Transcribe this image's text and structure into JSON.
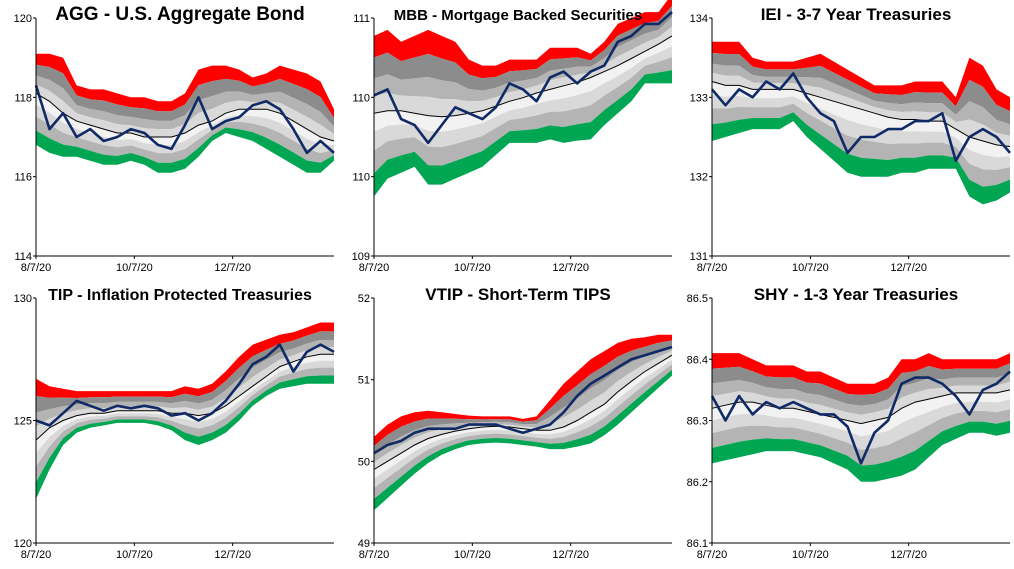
{
  "colors": {
    "red": "#ff0000",
    "gray_dark": "#8c8c8c",
    "gray_mid": "#b4b4b4",
    "gray_light": "#d9d9d9",
    "white_band": "#f2f2f2",
    "green_light": "#00b050",
    "green": "#00a651",
    "price_line": "#0f2a66",
    "mean_line": "#000000"
  },
  "chart_data": [
    {
      "type": "line",
      "ticker": "AGG",
      "title": "AGG - U.S. Aggregate Bond",
      "ylim": [
        114,
        120
      ],
      "yticks": [
        "114",
        "116",
        "118",
        "120"
      ],
      "xticks": [
        "8/7/20",
        "10/7/20",
        "12/7/20"
      ],
      "grid": false,
      "series": [
        {
          "name": "Price",
          "values": [
            118.3,
            117.2,
            117.6,
            117.0,
            117.2,
            116.9,
            117.0,
            117.2,
            117.1,
            116.8,
            116.7,
            117.3,
            118.0,
            117.2,
            117.4,
            117.5,
            117.8,
            117.9,
            117.7,
            117.2,
            116.6,
            116.9,
            116.6
          ]
        },
        {
          "name": "Mean",
          "values": [
            118.1,
            117.9,
            117.6,
            117.4,
            117.3,
            117.2,
            117.1,
            117.1,
            117.0,
            117.0,
            117.0,
            117.1,
            117.3,
            117.4,
            117.6,
            117.7,
            117.7,
            117.7,
            117.6,
            117.4,
            117.2,
            117.0,
            116.9
          ]
        },
        {
          "name": "Upper band",
          "values": [
            119.1,
            119.1,
            119.0,
            118.3,
            118.2,
            118.2,
            118.1,
            118.0,
            118.0,
            117.9,
            117.9,
            118.1,
            118.7,
            118.8,
            118.8,
            118.7,
            118.5,
            118.6,
            118.8,
            118.7,
            118.6,
            118.4,
            117.7
          ]
        },
        {
          "name": "Lower band",
          "values": [
            116.8,
            116.6,
            116.5,
            116.5,
            116.4,
            116.3,
            116.3,
            116.4,
            116.3,
            116.1,
            116.1,
            116.2,
            116.5,
            116.9,
            117.1,
            117.0,
            116.9,
            116.7,
            116.5,
            116.3,
            116.1,
            116.1,
            116.4
          ]
        }
      ]
    },
    {
      "type": "line",
      "ticker": "MBB",
      "title": "MBB - Mortgage Backed Securities",
      "ylim": [
        109,
        111
      ],
      "yticks": [
        "109",
        "110",
        "110",
        "111"
      ],
      "xticks": [
        "8/7/20",
        "10/7/20",
        "12/7/20"
      ],
      "grid": false,
      "series": [
        {
          "name": "Price",
          "values": [
            110.35,
            110.4,
            110.15,
            110.1,
            109.95,
            110.1,
            110.25,
            110.2,
            110.15,
            110.25,
            110.45,
            110.4,
            110.3,
            110.5,
            110.55,
            110.45,
            110.55,
            110.6,
            110.8,
            110.85,
            110.95,
            110.95,
            111.05
          ]
        },
        {
          "name": "Mean",
          "values": [
            110.2,
            110.22,
            110.22,
            110.2,
            110.18,
            110.17,
            110.18,
            110.2,
            110.22,
            110.26,
            110.3,
            110.33,
            110.37,
            110.4,
            110.43,
            110.46,
            110.5,
            110.55,
            110.6,
            110.66,
            110.72,
            110.78,
            110.85
          ]
        },
        {
          "name": "Upper band",
          "values": [
            110.85,
            110.9,
            110.8,
            110.85,
            110.9,
            110.85,
            110.8,
            110.65,
            110.6,
            110.6,
            110.65,
            110.65,
            110.65,
            110.75,
            110.75,
            110.75,
            110.7,
            110.8,
            110.95,
            111.0,
            111.05,
            111.05,
            111.2
          ]
        },
        {
          "name": "Lower band",
          "values": [
            109.5,
            109.65,
            109.7,
            109.75,
            109.6,
            109.6,
            109.65,
            109.7,
            109.75,
            109.85,
            109.95,
            109.95,
            109.95,
            109.98,
            109.95,
            109.97,
            109.98,
            110.1,
            110.2,
            110.3,
            110.45,
            110.45,
            110.45
          ]
        }
      ]
    },
    {
      "type": "line",
      "ticker": "IEI",
      "title": "IEI - 3-7 Year Treasuries",
      "ylim": [
        131,
        134
      ],
      "yticks": [
        "131",
        "132",
        "133",
        "134"
      ],
      "xticks": [
        "8/7/20",
        "10/7/20",
        "12/7/20"
      ],
      "grid": false,
      "series": [
        {
          "name": "Price",
          "values": [
            133.1,
            132.9,
            133.1,
            133.0,
            133.2,
            133.1,
            133.3,
            133.0,
            132.8,
            132.7,
            132.3,
            132.5,
            132.5,
            132.6,
            132.6,
            132.7,
            132.7,
            132.8,
            132.2,
            132.5,
            132.6,
            132.5,
            132.3
          ]
        },
        {
          "name": "Mean",
          "values": [
            133.2,
            133.15,
            133.15,
            133.1,
            133.1,
            133.1,
            133.1,
            133.05,
            133.0,
            132.95,
            132.9,
            132.85,
            132.8,
            132.75,
            132.72,
            132.72,
            132.7,
            132.7,
            132.6,
            132.5,
            132.45,
            132.4,
            132.38
          ]
        },
        {
          "name": "Upper band",
          "values": [
            133.7,
            133.7,
            133.7,
            133.5,
            133.45,
            133.45,
            133.45,
            133.5,
            133.55,
            133.45,
            133.35,
            133.25,
            133.15,
            133.15,
            133.15,
            133.2,
            133.2,
            133.2,
            133.0,
            133.5,
            133.4,
            133.1,
            133.0
          ]
        },
        {
          "name": "Lower band",
          "values": [
            132.45,
            132.5,
            132.55,
            132.6,
            132.6,
            132.6,
            132.7,
            132.5,
            132.35,
            132.2,
            132.05,
            132.0,
            132.0,
            132.0,
            132.05,
            132.05,
            132.1,
            132.1,
            132.1,
            131.75,
            131.65,
            131.7,
            131.8
          ]
        }
      ]
    },
    {
      "type": "line",
      "ticker": "TIP",
      "title": "TIP - Inflation Protected Treasuries",
      "ylim": [
        120,
        130
      ],
      "yticks": [
        "120",
        "125",
        "130"
      ],
      "xticks": [
        "8/7/20",
        "10/7/20",
        "12/7/20"
      ],
      "grid": false,
      "series": [
        {
          "name": "Price",
          "values": [
            125.0,
            124.8,
            125.3,
            125.8,
            125.6,
            125.4,
            125.6,
            125.5,
            125.6,
            125.5,
            125.2,
            125.3,
            125.0,
            125.3,
            125.8,
            126.5,
            127.3,
            127.6,
            128.1,
            127.0,
            127.8,
            128.1,
            127.8
          ]
        },
        {
          "name": "Mean",
          "values": [
            124.2,
            124.7,
            125.0,
            125.2,
            125.3,
            125.3,
            125.4,
            125.4,
            125.4,
            125.4,
            125.3,
            125.3,
            125.2,
            125.3,
            125.6,
            126.0,
            126.4,
            126.8,
            127.2,
            127.4,
            127.6,
            127.7,
            127.7
          ]
        },
        {
          "name": "Upper band",
          "values": [
            126.7,
            126.4,
            126.3,
            126.2,
            126.2,
            126.2,
            126.2,
            126.2,
            126.2,
            126.2,
            126.2,
            126.4,
            126.3,
            126.5,
            127.0,
            127.6,
            128.1,
            128.3,
            128.5,
            128.6,
            128.8,
            129.0,
            129.0
          ]
        },
        {
          "name": "Lower band",
          "values": [
            121.8,
            123.0,
            124.0,
            124.5,
            124.7,
            124.8,
            124.9,
            124.9,
            124.9,
            124.8,
            124.6,
            124.2,
            124.0,
            124.2,
            124.5,
            125.0,
            125.6,
            126.0,
            126.3,
            126.4,
            126.5,
            126.5,
            126.5
          ]
        }
      ]
    },
    {
      "type": "line",
      "ticker": "VTIP",
      "title": "VTIP - Short-Term TIPS",
      "ylim": [
        49,
        52
      ],
      "yticks": [
        "49",
        "50",
        "51",
        "52"
      ],
      "xticks": [
        "8/7/20",
        "10/7/20",
        "12/7/20"
      ],
      "grid": false,
      "series": [
        {
          "name": "Price",
          "values": [
            50.1,
            50.2,
            50.25,
            50.35,
            50.4,
            50.4,
            50.4,
            50.45,
            50.45,
            50.45,
            50.4,
            50.35,
            50.4,
            50.45,
            50.6,
            50.8,
            50.95,
            51.05,
            51.15,
            51.25,
            51.3,
            51.35,
            51.4
          ]
        },
        {
          "name": "Mean",
          "values": [
            49.9,
            50.0,
            50.1,
            50.2,
            50.28,
            50.33,
            50.37,
            50.4,
            50.42,
            50.43,
            50.42,
            50.4,
            50.38,
            50.38,
            50.42,
            50.5,
            50.6,
            50.7,
            50.85,
            50.98,
            51.1,
            51.2,
            51.3
          ]
        },
        {
          "name": "Upper band",
          "values": [
            50.3,
            50.45,
            50.55,
            50.6,
            50.62,
            50.6,
            50.58,
            50.56,
            50.55,
            50.55,
            50.55,
            50.52,
            50.55,
            50.75,
            50.95,
            51.1,
            51.25,
            51.35,
            51.45,
            51.5,
            51.52,
            51.55,
            51.55
          ]
        },
        {
          "name": "Lower band",
          "values": [
            49.4,
            49.55,
            49.7,
            49.85,
            49.98,
            50.08,
            50.15,
            50.2,
            50.22,
            50.23,
            50.22,
            50.2,
            50.18,
            50.15,
            50.15,
            50.18,
            50.22,
            50.32,
            50.45,
            50.6,
            50.75,
            50.9,
            51.05
          ]
        }
      ]
    },
    {
      "type": "line",
      "ticker": "SHY",
      "title": "SHY - 1-3 Year Treasuries",
      "ylim": [
        86.1,
        86.5
      ],
      "yticks": [
        "86.1",
        "86.2",
        "86.3",
        "86.4",
        "86.5"
      ],
      "xticks": [
        "8/7/20",
        "10/7/20",
        "12/7/20"
      ],
      "grid": false,
      "series": [
        {
          "name": "Price",
          "values": [
            86.34,
            86.3,
            86.34,
            86.31,
            86.33,
            86.32,
            86.33,
            86.32,
            86.31,
            86.31,
            86.29,
            86.23,
            86.28,
            86.3,
            86.36,
            86.37,
            86.37,
            86.36,
            86.34,
            86.31,
            86.35,
            86.36,
            86.38
          ]
        },
        {
          "name": "Mean",
          "values": [
            86.32,
            86.325,
            86.33,
            86.33,
            86.325,
            86.32,
            86.32,
            86.315,
            86.31,
            86.305,
            86.3,
            86.295,
            86.3,
            86.305,
            86.32,
            86.33,
            86.335,
            86.34,
            86.345,
            86.345,
            86.345,
            86.345,
            86.35
          ]
        },
        {
          "name": "Upper band",
          "values": [
            86.41,
            86.41,
            86.41,
            86.4,
            86.39,
            86.39,
            86.39,
            86.38,
            86.38,
            86.37,
            86.36,
            86.36,
            86.36,
            86.37,
            86.4,
            86.4,
            86.41,
            86.4,
            86.4,
            86.4,
            86.4,
            86.4,
            86.41
          ]
        },
        {
          "name": "Lower band",
          "values": [
            86.23,
            86.235,
            86.24,
            86.245,
            86.25,
            86.25,
            86.25,
            86.245,
            86.24,
            86.23,
            86.22,
            86.2,
            86.2,
            86.205,
            86.21,
            86.22,
            86.24,
            86.26,
            86.27,
            86.28,
            86.28,
            86.275,
            86.28
          ]
        }
      ]
    }
  ]
}
